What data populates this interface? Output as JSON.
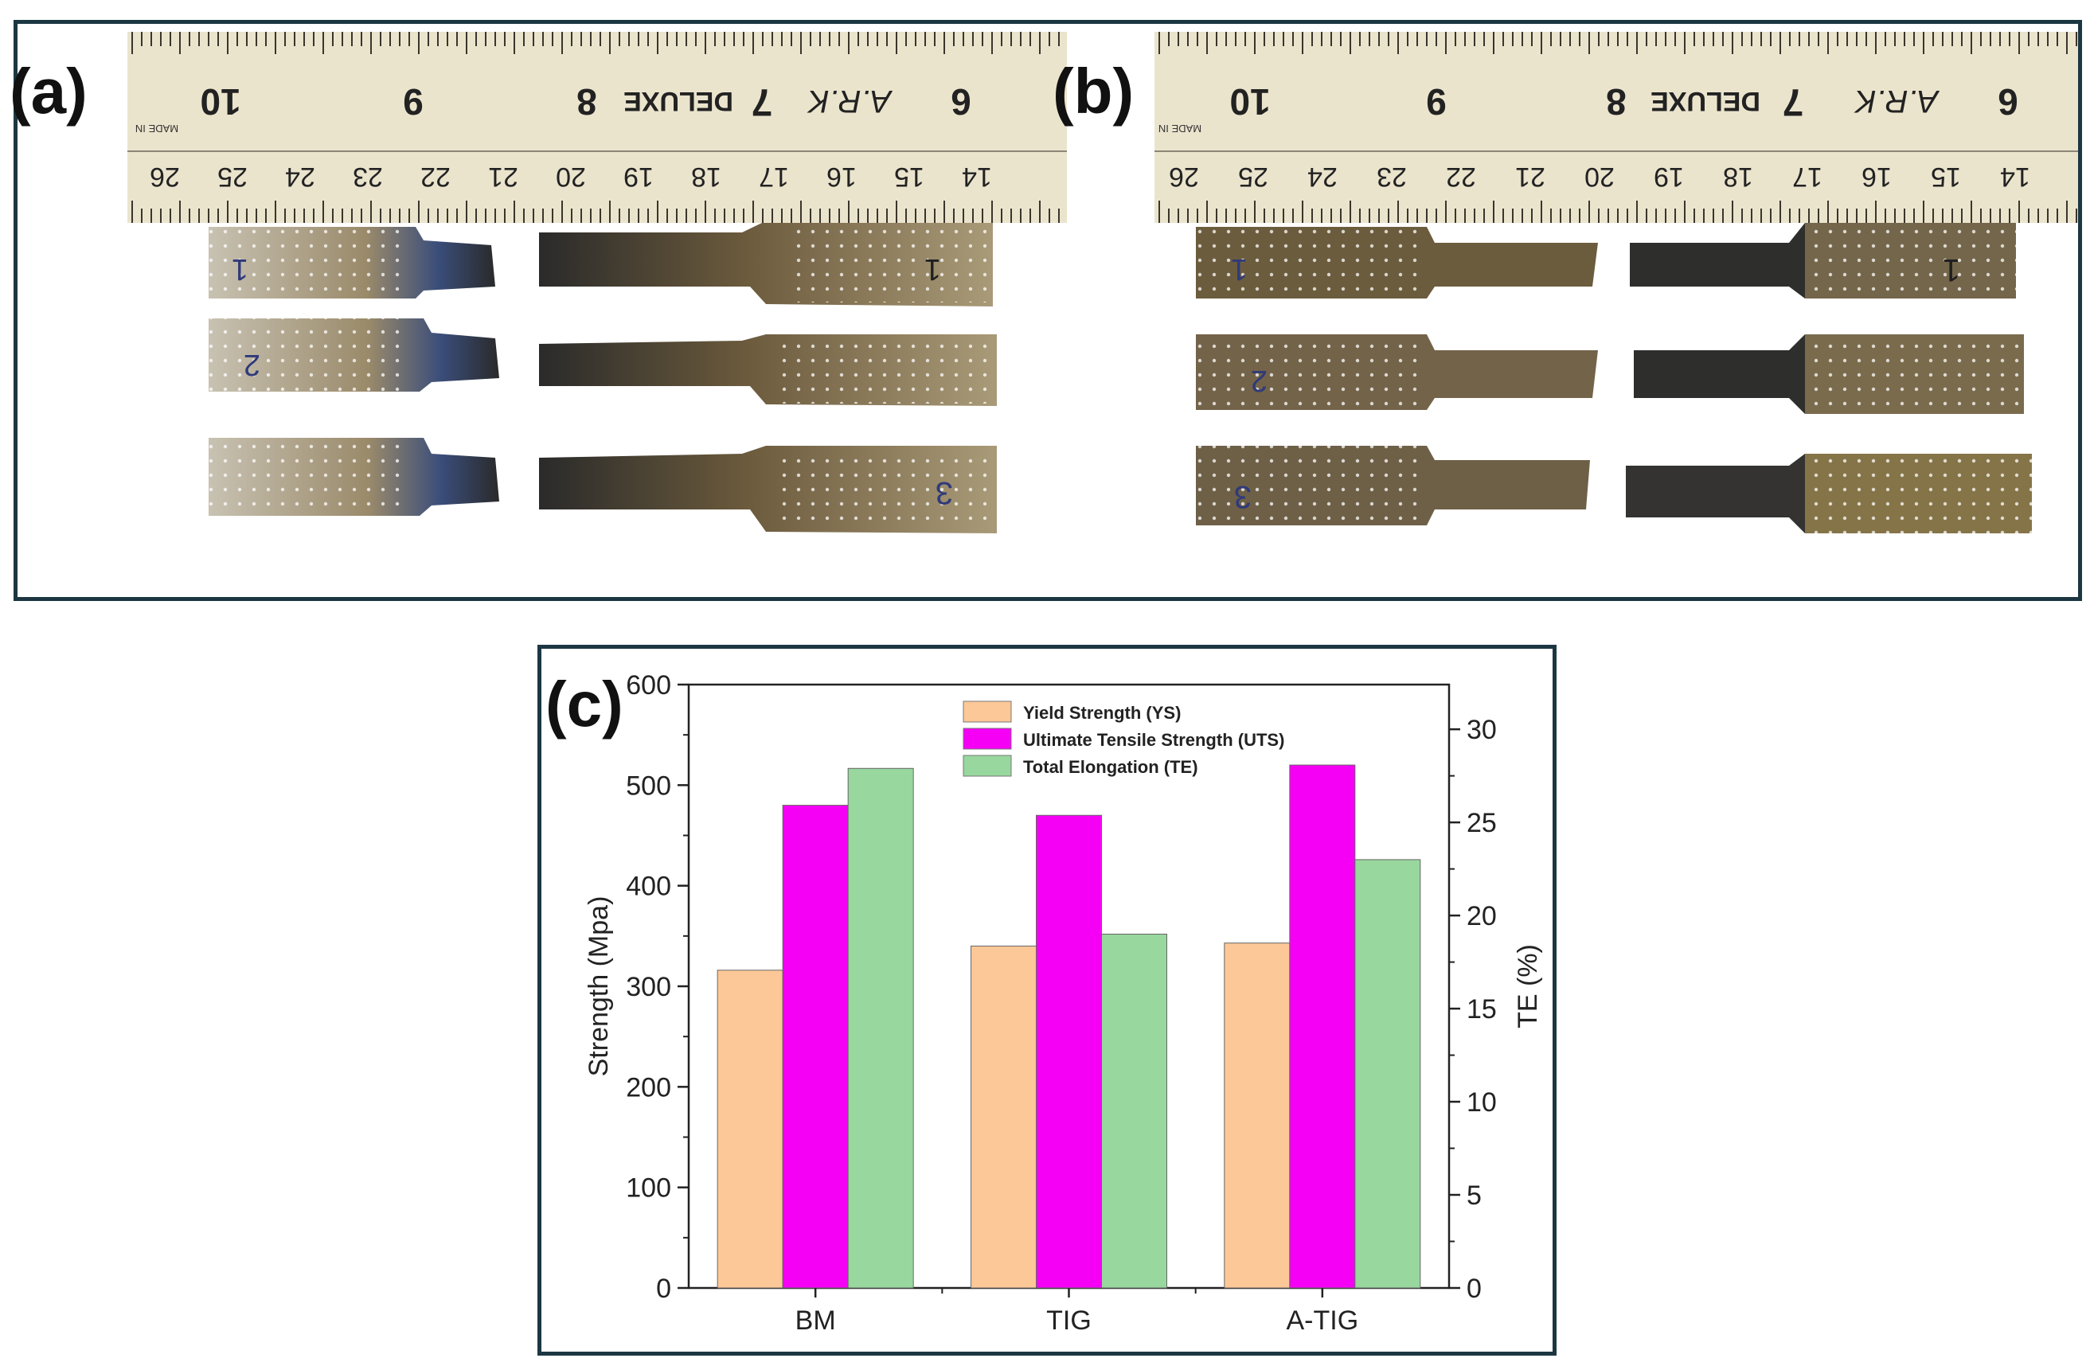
{
  "panels": {
    "a_label": "(a)",
    "b_label": "(b)",
    "c_label": "(c)"
  },
  "ruler": {
    "brand": "DELUXE",
    "maker": "A.R.K",
    "maker_number": "7",
    "made_in": "MADE IN",
    "top_numbers": [
      "10",
      "9",
      "8",
      "6"
    ],
    "bottom_numbers": [
      "26",
      "25",
      "24",
      "23",
      "22",
      "21",
      "20",
      "19",
      "18",
      "17",
      "16",
      "15",
      "14"
    ]
  },
  "specimen_marks": [
    "1",
    "2",
    "3"
  ],
  "colors": {
    "frame": "#1c3742",
    "ys": "#fdc897",
    "uts": "#f500f5",
    "te": "#98d79e",
    "ruler": "#ebe4cd",
    "specimen_dark": "#2b2a27",
    "specimen_light": "#bfb9a8"
  },
  "chart_data": {
    "type": "bar",
    "categories": [
      "BM",
      "TIG",
      "A-TIG"
    ],
    "series": [
      {
        "name": "Yield Strength (YS)",
        "axis": "left",
        "values": [
          316,
          340,
          343
        ]
      },
      {
        "name": "Ultimate Tensile Strength (UTS)",
        "axis": "left",
        "values": [
          480,
          470,
          520
        ]
      },
      {
        "name": "Total Elongation (TE)",
        "axis": "right",
        "values": [
          27.9,
          19.0,
          23.0
        ]
      }
    ],
    "ylabel": "Strength (Mpa)",
    "y2label": "TE (%)",
    "ylim": [
      0,
      600
    ],
    "y2lim": [
      0,
      32.4
    ],
    "yticks": [
      "0",
      "100",
      "200",
      "300",
      "400",
      "500",
      "600"
    ],
    "y2ticks": [
      "0",
      "5",
      "10",
      "15",
      "20",
      "25",
      "30"
    ],
    "legend_position": "top-center"
  }
}
